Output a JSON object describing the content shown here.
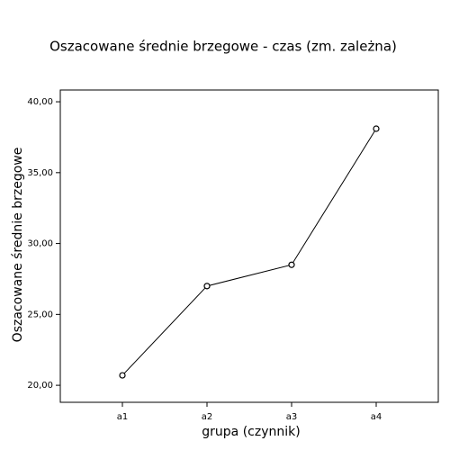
{
  "chart_data": {
    "type": "line",
    "title": "Oszacowane średnie brzegowe - czas (zm. zależna)",
    "x_label": "grupa (czynnik)",
    "y_label": "Oszacowane średnie brzegowe",
    "categories": [
      "a1",
      "a2",
      "a3",
      "a4"
    ],
    "values": [
      20.7,
      27.0,
      28.5,
      38.1
    ],
    "color": "#000000",
    "ylim": [
      18.8,
      40.83
    ],
    "yticks": [
      {
        "value": 20,
        "label": "20,00"
      },
      {
        "value": 25,
        "label": "25,00"
      },
      {
        "value": 30,
        "label": "30,00"
      },
      {
        "value": 35,
        "label": "35,00"
      },
      {
        "value": 40,
        "label": "40,00"
      }
    ],
    "grid": false
  }
}
